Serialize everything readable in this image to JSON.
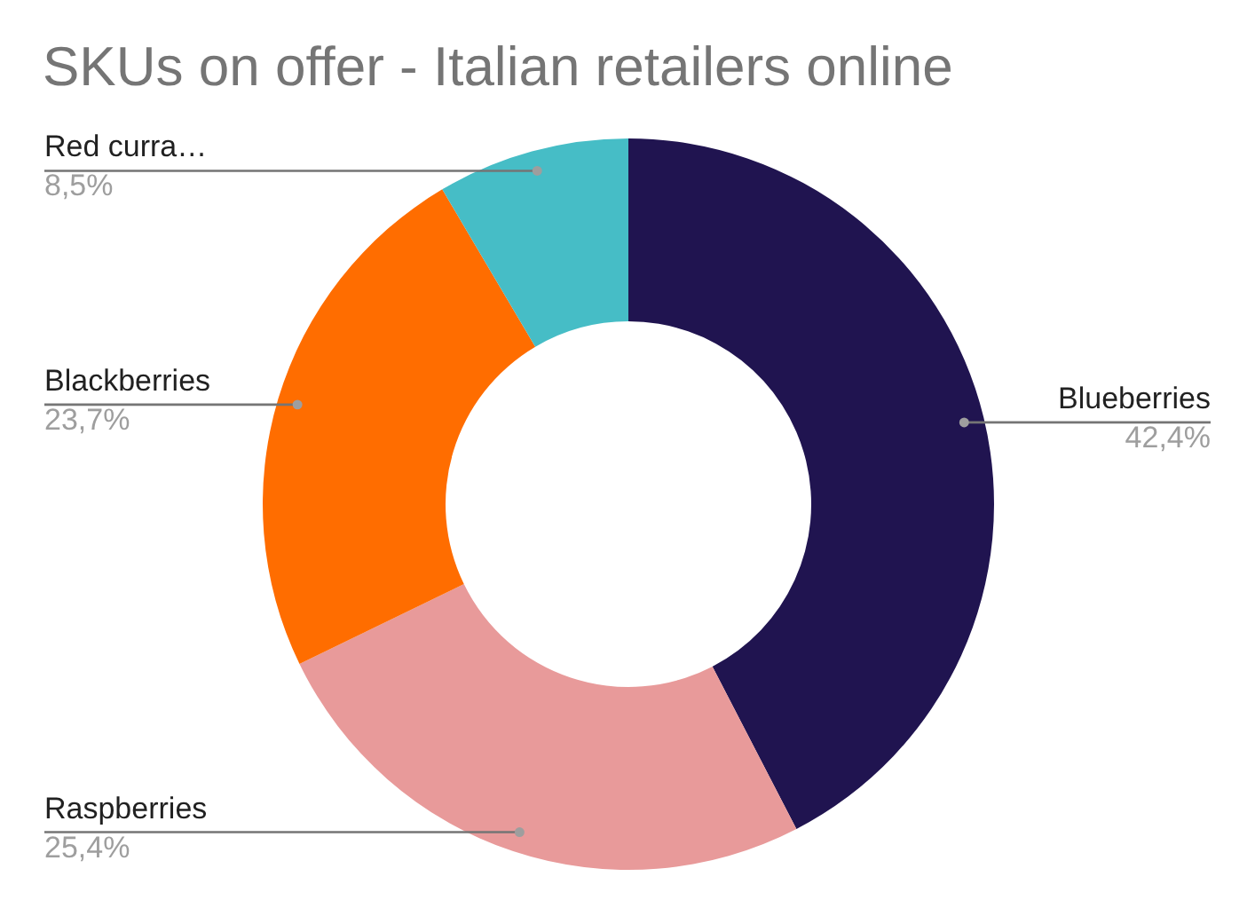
{
  "chart_data": {
    "type": "donut",
    "title": "SKUs on offer - Italian retailers online",
    "categories": [
      "Blueberries",
      "Raspberries",
      "Blackberries",
      "Red curra…"
    ],
    "values": [
      42.4,
      25.4,
      23.7,
      8.5
    ],
    "value_labels": [
      "42,4%",
      "25,4%",
      "23,7%",
      "8,5%"
    ],
    "colors": [
      "#201450",
      "#e89a9a",
      "#ff6d00",
      "#46bdc6"
    ]
  }
}
